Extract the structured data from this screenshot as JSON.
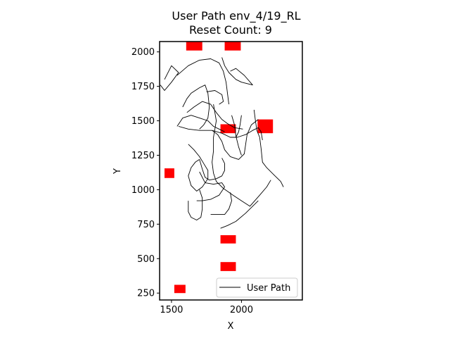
{
  "chart_data": {
    "type": "line",
    "title": "User Path env_4/19_RL",
    "subtitle": "Reset Count: 9",
    "xlabel": "X",
    "ylabel": "Y",
    "xlim": [
      1415,
      2435
    ],
    "ylim": [
      200,
      2075
    ],
    "xticks": [
      1500,
      2000
    ],
    "yticks": [
      250,
      500,
      750,
      1000,
      1250,
      1500,
      1750,
      2000
    ],
    "grid": false,
    "legend": {
      "placement": "bottom-right",
      "entries": [
        "User Path"
      ]
    },
    "series": [
      {
        "name": "User Path",
        "color": "#000000",
        "segments": [
          [
            [
              1450,
              1800
            ],
            [
              1500,
              1900
            ],
            [
              1550,
              1850
            ],
            [
              1500,
              1780
            ],
            [
              1450,
              1720
            ],
            [
              1420,
              1760
            ]
          ],
          [
            [
              1540,
              1830
            ],
            [
              1620,
              1900
            ],
            [
              1700,
              1940
            ],
            [
              1780,
              1950
            ],
            [
              1840,
              1920
            ],
            [
              1870,
              1860
            ],
            [
              1890,
              1780
            ],
            [
              1900,
              1700
            ],
            [
              1910,
              1620
            ]
          ],
          [
            [
              1860,
              1960
            ],
            [
              1880,
              1900
            ],
            [
              1910,
              1850
            ],
            [
              1960,
              1800
            ],
            [
              2000,
              1780
            ],
            [
              2080,
              1760
            ],
            [
              2020,
              1830
            ],
            [
              1960,
              1880
            ],
            [
              1920,
              1860
            ]
          ],
          [
            [
              1580,
              1600
            ],
            [
              1610,
              1660
            ],
            [
              1640,
              1700
            ],
            [
              1700,
              1740
            ],
            [
              1740,
              1760
            ],
            [
              1760,
              1700
            ],
            [
              1770,
              1600
            ],
            [
              1760,
              1520
            ],
            [
              1730,
              1470
            ],
            [
              1700,
              1440
            ]
          ],
          [
            [
              1610,
              1560
            ],
            [
              1660,
              1600
            ],
            [
              1720,
              1640
            ],
            [
              1780,
              1620
            ],
            [
              1820,
              1560
            ],
            [
              1860,
              1510
            ],
            [
              1900,
              1480
            ],
            [
              1950,
              1450
            ],
            [
              2010,
              1440
            ]
          ],
          [
            [
              1540,
              1460
            ],
            [
              1580,
              1520
            ],
            [
              1640,
              1540
            ],
            [
              1700,
              1520
            ],
            [
              1760,
              1500
            ],
            [
              1800,
              1460
            ],
            [
              1840,
              1440
            ],
            [
              1880,
              1420
            ]
          ],
          [
            [
              1550,
              1460
            ],
            [
              1620,
              1440
            ],
            [
              1700,
              1430
            ],
            [
              1790,
              1430
            ],
            [
              1860,
              1410
            ],
            [
              1920,
              1380
            ],
            [
              1970,
              1380
            ],
            [
              2030,
              1400
            ],
            [
              2080,
              1430
            ],
            [
              2120,
              1450
            ],
            [
              2140,
              1420
            ],
            [
              2150,
              1360
            ]
          ],
          [
            [
              1790,
              1430
            ],
            [
              1830,
              1400
            ],
            [
              1860,
              1350
            ],
            [
              1880,
              1290
            ],
            [
              1920,
              1240
            ],
            [
              1980,
              1220
            ],
            [
              2020,
              1260
            ],
            [
              2030,
              1330
            ],
            [
              2040,
              1400
            ],
            [
              2070,
              1470
            ],
            [
              2120,
              1510
            ]
          ],
          [
            [
              1930,
              1540
            ],
            [
              1950,
              1470
            ],
            [
              1960,
              1390
            ],
            [
              1980,
              1310
            ],
            [
              2000,
              1250
            ]
          ],
          [
            [
              2000,
              1540
            ],
            [
              1990,
              1470
            ],
            [
              1980,
              1420
            ],
            [
              1960,
              1380
            ]
          ],
          [
            [
              2090,
              1580
            ],
            [
              2100,
              1500
            ],
            [
              2110,
              1430
            ],
            [
              2130,
              1380
            ],
            [
              2140,
              1300
            ],
            [
              2150,
              1200
            ],
            [
              2180,
              1160
            ],
            [
              2230,
              1110
            ],
            [
              2280,
              1060
            ],
            [
              2300,
              1020
            ]
          ],
          [
            [
              1620,
              1330
            ],
            [
              1660,
              1290
            ],
            [
              1700,
              1240
            ],
            [
              1730,
              1190
            ],
            [
              1760,
              1140
            ],
            [
              1760,
              1080
            ],
            [
              1720,
              1020
            ],
            [
              1680,
              990
            ],
            [
              1640,
              1030
            ],
            [
              1620,
              1100
            ],
            [
              1640,
              1160
            ],
            [
              1670,
              1200
            ],
            [
              1700,
              1220
            ]
          ],
          [
            [
              1700,
              1220
            ],
            [
              1720,
              1150
            ],
            [
              1740,
              1090
            ],
            [
              1770,
              1070
            ],
            [
              1820,
              1080
            ],
            [
              1860,
              1100
            ],
            [
              1880,
              1140
            ],
            [
              1880,
              1190
            ],
            [
              1860,
              1230
            ]
          ],
          [
            [
              1700,
              1130
            ],
            [
              1740,
              1050
            ],
            [
              1800,
              1040
            ],
            [
              1860,
              1050
            ],
            [
              1880,
              1020
            ],
            [
              1840,
              960
            ],
            [
              1780,
              930
            ],
            [
              1720,
              920
            ],
            [
              1680,
              920
            ]
          ],
          [
            [
              1620,
              920
            ],
            [
              1620,
              840
            ],
            [
              1640,
              800
            ],
            [
              1680,
              780
            ],
            [
              1710,
              800
            ],
            [
              1720,
              860
            ],
            [
              1720,
              940
            ],
            [
              1700,
              1000
            ]
          ],
          [
            [
              1800,
              1620
            ],
            [
              1810,
              1560
            ],
            [
              1820,
              1500
            ],
            [
              1810,
              1440
            ],
            [
              1800,
              1380
            ],
            [
              1800,
              1280
            ],
            [
              1790,
              1200
            ],
            [
              1800,
              1120
            ],
            [
              1820,
              1060
            ],
            [
              1870,
              1010
            ],
            [
              1940,
              960
            ],
            [
              2000,
              920
            ],
            [
              2060,
              880
            ],
            [
              2130,
              960
            ],
            [
              2180,
              1020
            ],
            [
              2210,
              1070
            ]
          ],
          [
            [
              1780,
              820
            ],
            [
              1830,
              820
            ],
            [
              1880,
              820
            ],
            [
              1910,
              860
            ],
            [
              1930,
              920
            ],
            [
              1920,
              980
            ]
          ],
          [
            [
              1850,
              720
            ],
            [
              1900,
              740
            ],
            [
              1960,
              770
            ],
            [
              2030,
              830
            ],
            [
              2080,
              880
            ],
            [
              2120,
              920
            ]
          ],
          [
            [
              1750,
              1710
            ],
            [
              1810,
              1720
            ],
            [
              1860,
              1690
            ],
            [
              1870,
              1640
            ],
            [
              1840,
              1620
            ]
          ]
        ]
      }
    ],
    "obstacles": {
      "color": "#ff0000",
      "boxes": [
        {
          "x": [
            1605,
            1720
          ],
          "y": [
            2010,
            2075
          ]
        },
        {
          "x": [
            1880,
            1995
          ],
          "y": [
            2010,
            2075
          ]
        },
        {
          "x": [
            1850,
            1960
          ],
          "y": [
            1410,
            1475
          ]
        },
        {
          "x": [
            2115,
            2225
          ],
          "y": [
            1410,
            1510
          ]
        },
        {
          "x": [
            1450,
            1520
          ],
          "y": [
            1085,
            1155
          ]
        },
        {
          "x": [
            1850,
            1960
          ],
          "y": [
            610,
            670
          ]
        },
        {
          "x": [
            1850,
            1960
          ],
          "y": [
            410,
            475
          ]
        },
        {
          "x": [
            1520,
            1600
          ],
          "y": [
            250,
            310
          ]
        }
      ]
    }
  }
}
